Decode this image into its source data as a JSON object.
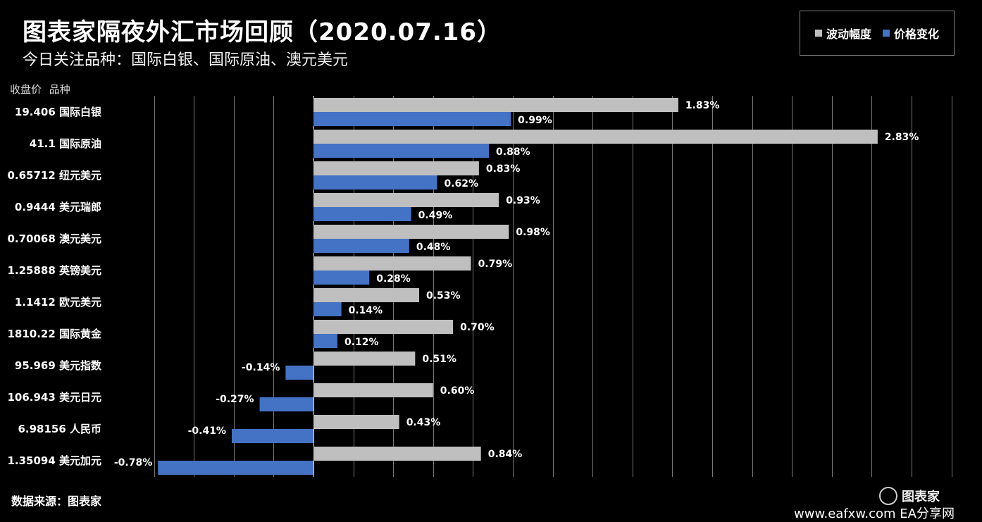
{
  "title": "图表家隔夜外汇市场回顾（2020.07.16）",
  "subtitle": "今日关注品种：国际白银、国际原油、澳元美元",
  "column_headers": {
    "price": "收盘价",
    "instrument": "品种"
  },
  "legend": [
    {
      "label": "波动幅度",
      "color": "#bfbfbf"
    },
    {
      "label": "价格变化",
      "color": "#4472c4"
    }
  ],
  "source": "数据来源：图表家",
  "watermark": {
    "site": "www.eafxw.com",
    "brand": "EA分享网",
    "logo_text": "图表家"
  },
  "chart_data": {
    "type": "bar",
    "orientation": "horizontal",
    "categories": [
      "国际白银",
      "国际原油",
      "纽元美元",
      "美元瑞郎",
      "澳元美元",
      "英镑美元",
      "欧元美元",
      "国际黄金",
      "美元指数",
      "美元日元",
      "人民币",
      "美元加元"
    ],
    "closing_prices": [
      "19.406",
      "41.1",
      "0.65712",
      "0.9444",
      "0.70068",
      "1.25888",
      "1.1412",
      "1810.22",
      "95.969",
      "106.943",
      "6.98156",
      "1.35094"
    ],
    "series": [
      {
        "name": "波动幅度",
        "color": "#bfbfbf",
        "values": [
          1.83,
          2.83,
          0.83,
          0.93,
          0.98,
          0.79,
          0.53,
          0.7,
          0.51,
          0.6,
          0.43,
          0.84
        ],
        "labels": [
          "1.83%",
          "2.83%",
          "0.83%",
          "0.93%",
          "0.98%",
          "0.79%",
          "0.53%",
          "0.70%",
          "0.51%",
          "0.60%",
          "0.43%",
          "0.84%"
        ]
      },
      {
        "name": "价格变化",
        "color": "#4472c4",
        "values": [
          0.99,
          0.88,
          0.62,
          0.49,
          0.48,
          0.28,
          0.14,
          0.12,
          -0.14,
          -0.27,
          -0.41,
          -0.78
        ],
        "labels": [
          "0.99%",
          "0.88%",
          "0.62%",
          "0.49%",
          "0.48%",
          "0.28%",
          "0.14%",
          "0.12%",
          "-0.14%",
          "-0.27%",
          "-0.41%",
          "-0.78%"
        ]
      }
    ],
    "unit": "%",
    "xlim": [
      -1.0,
      3.2
    ],
    "gridlines": "vertical",
    "legend_position": "top-right"
  }
}
